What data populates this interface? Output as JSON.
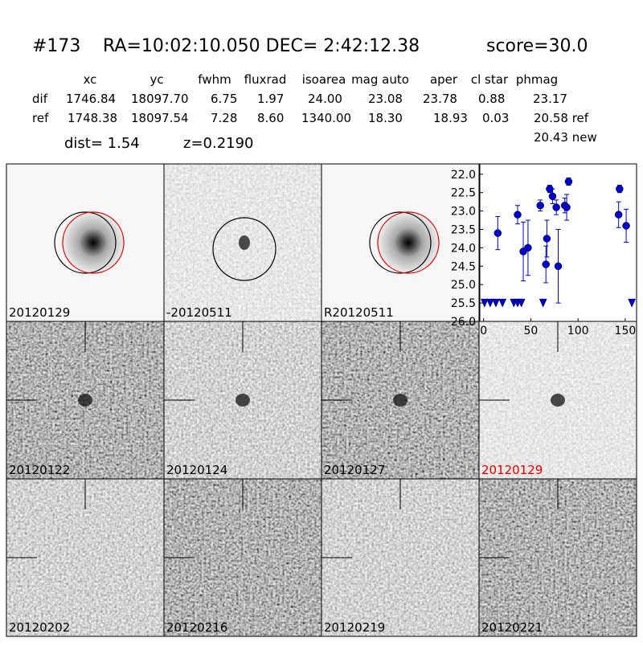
{
  "header": {
    "id": "#173",
    "coords": "RA=10:02:10.050 DEC= 2:42:12.38",
    "score": "score=30.0"
  },
  "table": {
    "columns": [
      "xc",
      "yc",
      "fwhm",
      "fluxrad",
      "isoarea",
      "mag auto",
      "aper",
      "cl star",
      "phmag"
    ],
    "rows": [
      [
        "dif",
        "1746.84",
        "18097.70",
        "6.75",
        "1.97",
        "24.00",
        "23.08",
        "23.78",
        "0.88",
        "23.17"
      ],
      [
        "ref",
        "1748.38",
        "18097.54",
        "7.28",
        "8.60",
        "1340.00",
        "18.30",
        "18.93",
        "0.03",
        "20.58 ref"
      ]
    ],
    "extra": "20.43 new"
  },
  "dist": "dist=  1.54",
  "redshift": "z=0.2190",
  "panels": [
    "20120129",
    "-20120511",
    "R20120511",
    "20120122",
    "20120124",
    "20120127",
    "20120129",
    "20120202",
    "20120216",
    "20120219",
    "20120221"
  ],
  "chart_data": {
    "type": "scatter",
    "xlim": [
      -4,
      162
    ],
    "xticks": [
      0,
      50,
      100,
      150
    ],
    "ylim": [
      26.0,
      21.72
    ],
    "yticks": [
      {
        "value": 22.0,
        "label": "22.0"
      },
      {
        "value": 22.5,
        "label": "22.5"
      },
      {
        "value": 23.0,
        "label": "23.0"
      },
      {
        "value": 23.5,
        "label": "23.5"
      },
      {
        "value": 24.0,
        "label": "24.0"
      },
      {
        "value": 24.5,
        "label": "24.5"
      },
      {
        "value": 25.0,
        "label": "25.0"
      },
      {
        "value": 25.5,
        "label": "25.5"
      },
      {
        "value": 26.0,
        "label": "26.0"
      }
    ],
    "series": [
      {
        "color": "#0000cc",
        "marker": "circle",
        "x": [
          15,
          36,
          42,
          47,
          60,
          66,
          67,
          70,
          73,
          77,
          79,
          86,
          88,
          90,
          143,
          144,
          151
        ],
        "values": [
          23.6,
          23.1,
          24.1,
          24.0,
          22.85,
          24.45,
          23.75,
          22.4,
          22.6,
          22.9,
          24.5,
          22.85,
          22.9,
          22.2,
          23.1,
          22.4,
          23.4
        ],
        "errors": [
          0.45,
          0.25,
          0.8,
          0.75,
          0.15,
          0.5,
          0.5,
          0.1,
          0.2,
          0.2,
          1.0,
          0.2,
          0.35,
          0.1,
          0.35,
          0.1,
          0.45
        ]
      },
      {
        "color": "#0000cc",
        "marker": "triangle",
        "x": [
          1,
          7,
          13,
          20,
          32,
          36,
          40,
          63,
          157
        ],
        "values": [
          25.5,
          25.5,
          25.5,
          25.5,
          25.5,
          25.5,
          25.5,
          25.5,
          25.5
        ]
      }
    ]
  }
}
